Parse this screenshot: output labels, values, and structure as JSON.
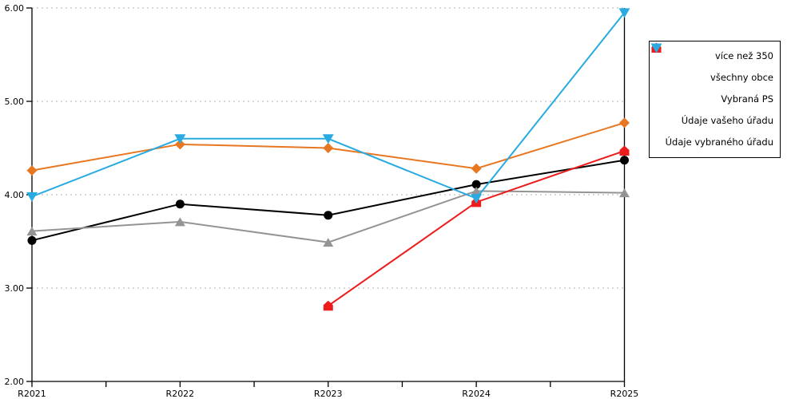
{
  "chart_data": {
    "type": "line",
    "title": "",
    "xlabel": "",
    "ylabel": "",
    "categories": [
      "R2021",
      "R2022",
      "R2023",
      "R2024",
      "R2025"
    ],
    "y_axis": {
      "min": 2.0,
      "max": 6.0,
      "tick_step": 1.0,
      "tick_labels": [
        "2.00",
        "3.00",
        "4.00",
        "5.00",
        "6.00"
      ],
      "gridlines": "dashed"
    },
    "x_axis": {
      "minor_ticks_between_categories": true
    },
    "series": [
      {
        "name": "více než 350",
        "color": "#e87722",
        "marker": "diamond",
        "values": [
          4.26,
          4.54,
          4.5,
          4.28,
          4.77
        ]
      },
      {
        "name": "všechny obce",
        "color": "#000000",
        "marker": "circle",
        "values": [
          3.51,
          3.9,
          3.78,
          4.11,
          4.37
        ]
      },
      {
        "name": "Vybraná PS",
        "color": "#949494",
        "marker": "triangle-up",
        "values": [
          3.61,
          3.71,
          3.49,
          4.04,
          4.02
        ]
      },
      {
        "name": "Údaje vašeho úřadu",
        "color": "#ed1c1c",
        "marker": "pentagon-up",
        "values": [
          null,
          null,
          2.81,
          3.92,
          4.47
        ]
      },
      {
        "name": "Údaje vybraného úřadu",
        "color": "#29abe2",
        "marker": "triangle-down",
        "values": [
          3.98,
          4.6,
          4.6,
          3.96,
          5.95
        ]
      }
    ],
    "legend": {
      "position": "top-right",
      "border": true,
      "background": "#ffffff"
    },
    "grid_color": "#b0b0b0",
    "axis_color": "#000000"
  }
}
